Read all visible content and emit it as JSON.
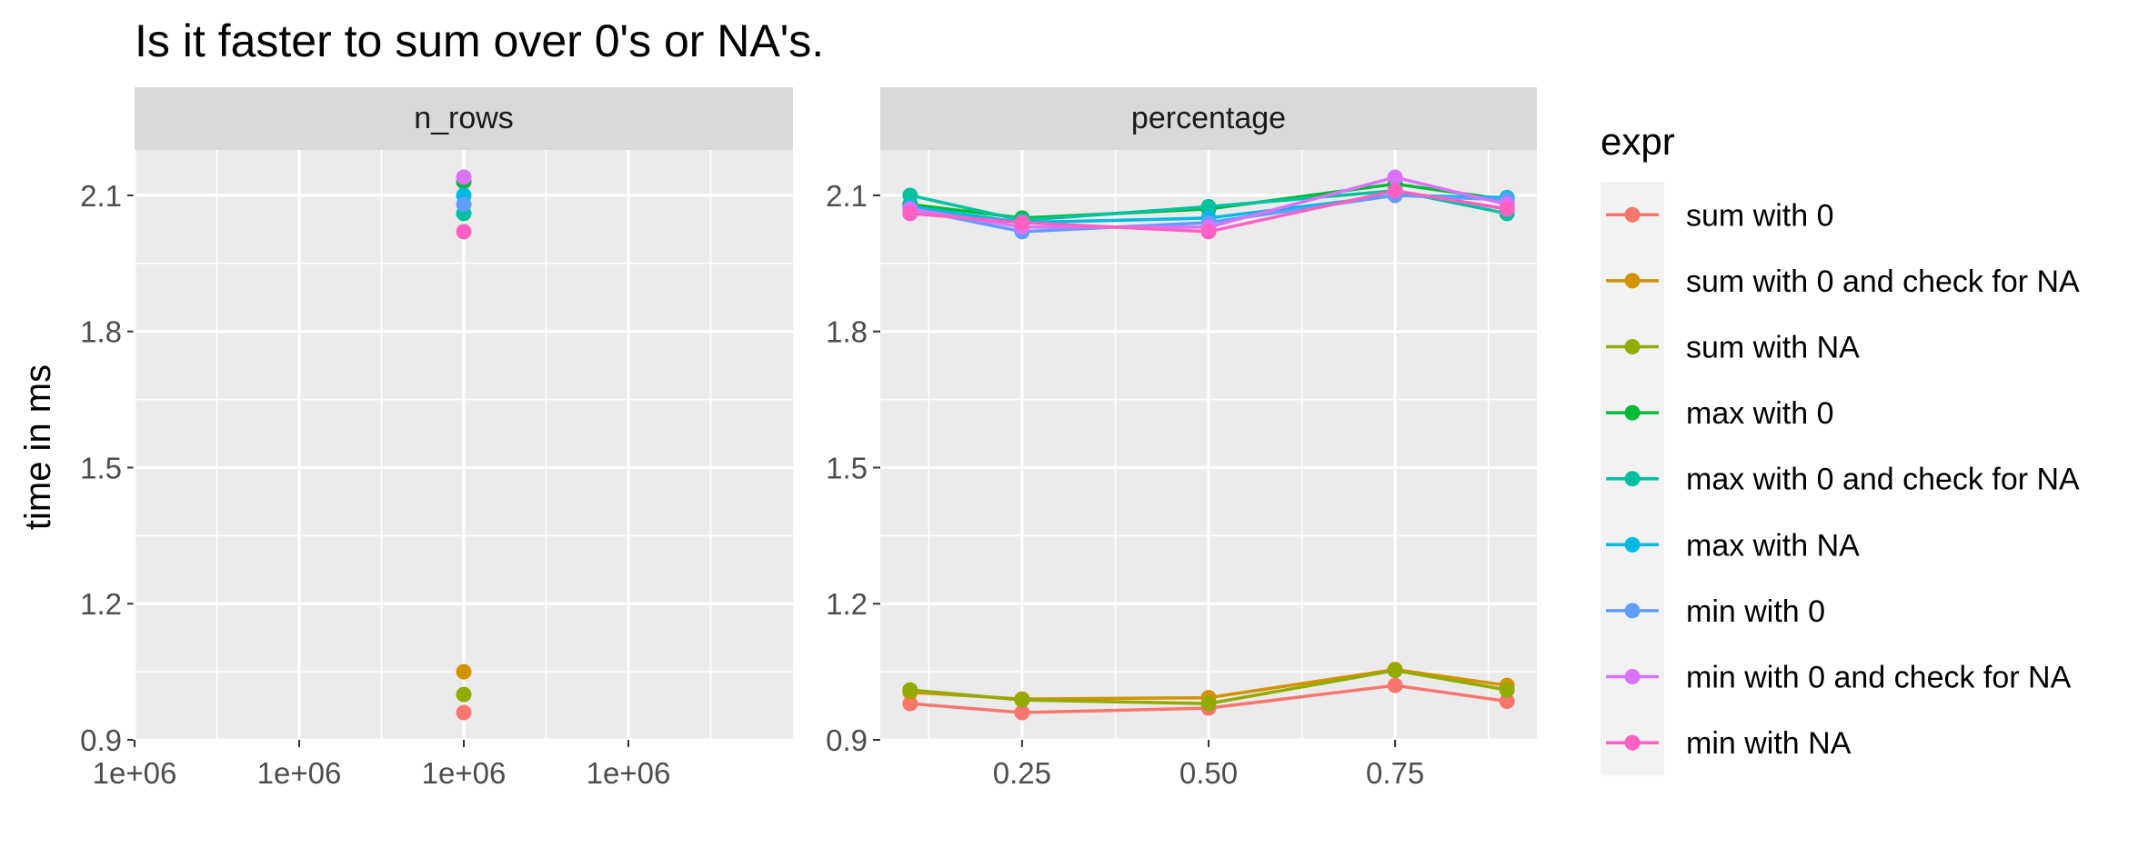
{
  "chart_data": {
    "type": "line",
    "title": "Is it faster to sum over 0's or NA's.",
    "ylabel": "time in ms",
    "ylim": [
      0.9,
      2.2
    ],
    "yticks": [
      "0.9",
      "1.2",
      "1.5",
      "1.8",
      "2.1"
    ],
    "ytick_values": [
      0.9,
      1.2,
      1.5,
      1.8,
      2.1
    ],
    "grid": true,
    "legend": {
      "title": "expr",
      "placement": "right",
      "entries": [
        {
          "label": "sum with 0",
          "color": "#F8766D"
        },
        {
          "label": "sum with 0 and check for NA",
          "color": "#D39200"
        },
        {
          "label": "sum with NA",
          "color": "#93AA00"
        },
        {
          "label": "max with 0",
          "color": "#00BA38"
        },
        {
          "label": "max with 0 and check for NA",
          "color": "#00C19F"
        },
        {
          "label": "max with NA",
          "color": "#00B9E3"
        },
        {
          "label": "min with 0",
          "color": "#619CFF"
        },
        {
          "label": "min with 0 and check for NA",
          "color": "#DB72FB"
        },
        {
          "label": "min with NA",
          "color": "#FF61C3"
        }
      ]
    },
    "panels": [
      {
        "strip": "n_rows",
        "x_tick_labels": [
          "1e+06",
          "1e+06",
          "1e+06",
          "1e+06"
        ],
        "x_tick_positions": [
          0,
          1,
          2,
          3
        ],
        "xlim": [
          0,
          4
        ],
        "x": [
          2
        ],
        "series": [
          {
            "name": "sum with 0",
            "values": [
              0.96
            ]
          },
          {
            "name": "sum with 0 and check for NA",
            "values": [
              1.05
            ]
          },
          {
            "name": "sum with NA",
            "values": [
              1.0
            ]
          },
          {
            "name": "max with 0",
            "values": [
              2.13
            ]
          },
          {
            "name": "max with 0 and check for NA",
            "values": [
              2.06
            ]
          },
          {
            "name": "max with NA",
            "values": [
              2.1
            ]
          },
          {
            "name": "min with 0",
            "values": [
              2.08
            ]
          },
          {
            "name": "min with 0 and check for NA",
            "values": [
              2.14
            ]
          },
          {
            "name": "min with NA",
            "values": [
              2.02
            ]
          }
        ]
      },
      {
        "strip": "percentage",
        "x_tick_labels": [
          "0.25",
          "0.50",
          "0.75"
        ],
        "x_tick_positions": [
          0.25,
          0.5,
          0.75
        ],
        "xlim": [
          0.06,
          0.94
        ],
        "x": [
          0.1,
          0.25,
          0.5,
          0.75,
          0.9
        ],
        "series": [
          {
            "name": "sum with 0",
            "values": [
              0.98,
              0.96,
              0.97,
              1.02,
              0.985
            ]
          },
          {
            "name": "sum with 0 and check for NA",
            "values": [
              1.005,
              0.99,
              0.993,
              1.055,
              1.02
            ]
          },
          {
            "name": "sum with NA",
            "values": [
              1.01,
              0.988,
              0.98,
              1.053,
              1.01
            ]
          },
          {
            "name": "max with 0",
            "values": [
              2.08,
              2.05,
              2.07,
              2.125,
              2.09
            ]
          },
          {
            "name": "max with 0 and check for NA",
            "values": [
              2.1,
              2.045,
              2.075,
              2.11,
              2.06
            ]
          },
          {
            "name": "max with NA",
            "values": [
              2.075,
              2.04,
              2.05,
              2.1,
              2.095
            ]
          },
          {
            "name": "min with 0",
            "values": [
              2.07,
              2.02,
              2.04,
              2.1,
              2.09
            ]
          },
          {
            "name": "min with 0 and check for NA",
            "values": [
              2.07,
              2.03,
              2.03,
              2.14,
              2.08
            ]
          },
          {
            "name": "min with NA",
            "values": [
              2.06,
              2.04,
              2.02,
              2.11,
              2.07
            ]
          }
        ]
      }
    ]
  }
}
